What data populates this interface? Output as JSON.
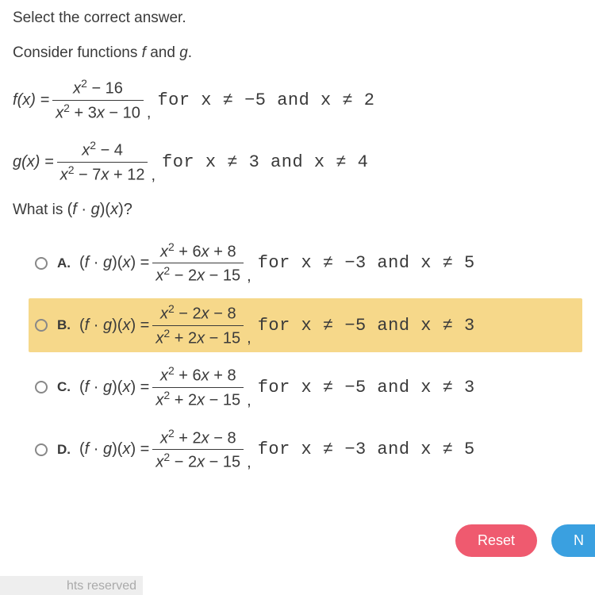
{
  "instruction": "Select the correct answer.",
  "consider": "Consider functions f and g.",
  "f": {
    "lhs": "f(x) = ",
    "num": "x² − 16",
    "den": "x² + 3x − 10",
    "cond": "for x ≠ −5 and x ≠ 2"
  },
  "g": {
    "lhs": "g(x) = ",
    "num": "x² − 4",
    "den": "x² − 7x + 12",
    "cond": "for x ≠ 3 and x ≠ 4"
  },
  "question_prefix": "What is ",
  "question_expr": "(f · g)(x)?",
  "options": [
    {
      "letter": "A.",
      "lhs": "(f · g)(x) = ",
      "num": "x² + 6x + 8",
      "den": "x² − 2x − 15",
      "cond": "for x ≠ −3 and x ≠ 5",
      "highlight": false
    },
    {
      "letter": "B.",
      "lhs": "(f · g)(x) = ",
      "num": "x² − 2x − 8",
      "den": "x² + 2x − 15",
      "cond": "for x ≠ −5 and x ≠ 3",
      "highlight": true
    },
    {
      "letter": "C.",
      "lhs": "(f · g)(x) = ",
      "num": "x² + 6x + 8",
      "den": "x² + 2x − 15",
      "cond": "for x ≠ −5 and x ≠ 3",
      "highlight": false
    },
    {
      "letter": "D.",
      "lhs": "(f · g)(x) = ",
      "num": "x² + 2x − 8",
      "den": "x² − 2x − 15",
      "cond": "for x ≠ −3 and x ≠ 5",
      "highlight": false
    }
  ],
  "buttons": {
    "reset": "Reset",
    "next": "N"
  },
  "footer": "hts reserved",
  "colors": {
    "highlight": "#f6d88a",
    "reset_btn": "#ef5a6f",
    "next_btn": "#3aa0e0",
    "text": "#3a3a3a"
  }
}
